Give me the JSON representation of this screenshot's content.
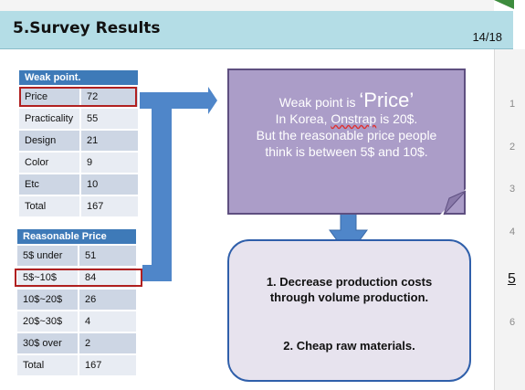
{
  "slide": {
    "title": "5.Survey Results",
    "page_number": "14/18"
  },
  "weak_table": {
    "header": "Weak point.",
    "rows": [
      {
        "label": "Price",
        "value": "72"
      },
      {
        "label": "Practicality",
        "value": "55"
      },
      {
        "label": "Design",
        "value": "21"
      },
      {
        "label": "Color",
        "value": "9"
      },
      {
        "label": "Etc",
        "value": "10"
      },
      {
        "label": "Total",
        "value": "167"
      }
    ]
  },
  "price_table": {
    "header": "Reasonable Price",
    "rows": [
      {
        "label": "5$ under",
        "value": "51"
      },
      {
        "label": "5$~10$",
        "value": "84"
      },
      {
        "label": "10$~20$",
        "value": "26"
      },
      {
        "label": "20$~30$",
        "value": "4"
      },
      {
        "label": "30$ over",
        "value": "2"
      },
      {
        "label": "Total",
        "value": "167"
      }
    ]
  },
  "callout": {
    "line1_prefix": "Weak point is ",
    "line1_emphasis": "‘Price’",
    "line2_prefix": "In Korea, ",
    "line2_brand": "Onstrap",
    "line2_suffix": " is 20$.",
    "line3": "But the reasonable price people",
    "line4": "think is between 5$ and 10$."
  },
  "solutions": {
    "item1_line1": "1. Decrease production costs",
    "item1_line2": "through volume production.",
    "item2": "2. Cheap raw materials."
  },
  "thumbnails": [
    "1",
    "2",
    "3",
    "4",
    "5",
    "6"
  ],
  "colors": {
    "title_bar": "#b4dde6",
    "table_header": "#3e7ab8",
    "arrow": "#4f86c9",
    "callout_fill": "#ab9dc8",
    "highlight_border": "#b02020"
  }
}
